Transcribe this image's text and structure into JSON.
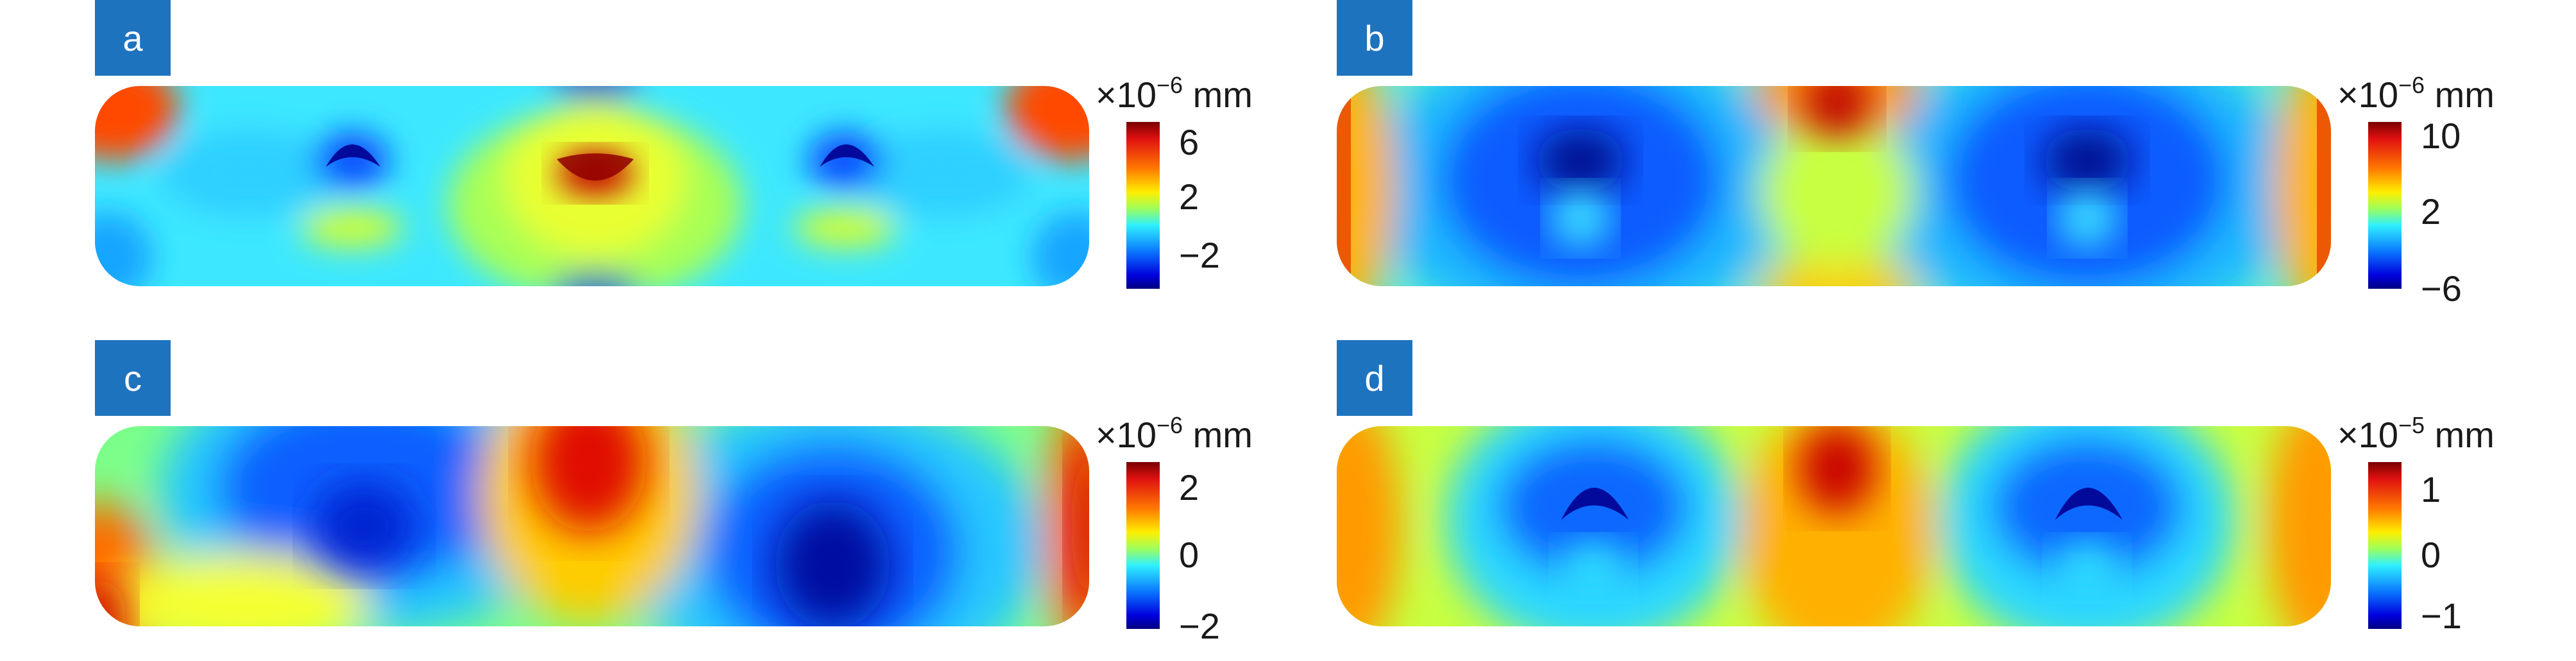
{
  "panels": [
    {
      "label": "a",
      "unit": {
        "prefix": "×10",
        "exp": "−6",
        "suffix": " mm"
      },
      "ticks": [
        "6",
        "2",
        "−2"
      ],
      "colorbar_range": [
        -4,
        7
      ]
    },
    {
      "label": "b",
      "unit": {
        "prefix": "×10",
        "exp": "−6",
        "suffix": " mm"
      },
      "ticks": [
        "10",
        "2",
        "−6"
      ],
      "colorbar_range": [
        -6,
        10
      ]
    },
    {
      "label": "c",
      "unit": {
        "prefix": "×10",
        "exp": "−6",
        "suffix": " mm"
      },
      "ticks": [
        "2",
        "0",
        "−2"
      ],
      "colorbar_range": [
        -2,
        2.3
      ]
    },
    {
      "label": "d",
      "unit": {
        "prefix": "×10",
        "exp": "−5",
        "suffix": " mm"
      },
      "ticks": [
        "1",
        "0",
        "−1"
      ],
      "colorbar_range": [
        -1.1,
        1.3
      ]
    }
  ],
  "colors": {
    "badge": "#1e73be",
    "text": "#1a1a1a",
    "colormap": "jet"
  }
}
